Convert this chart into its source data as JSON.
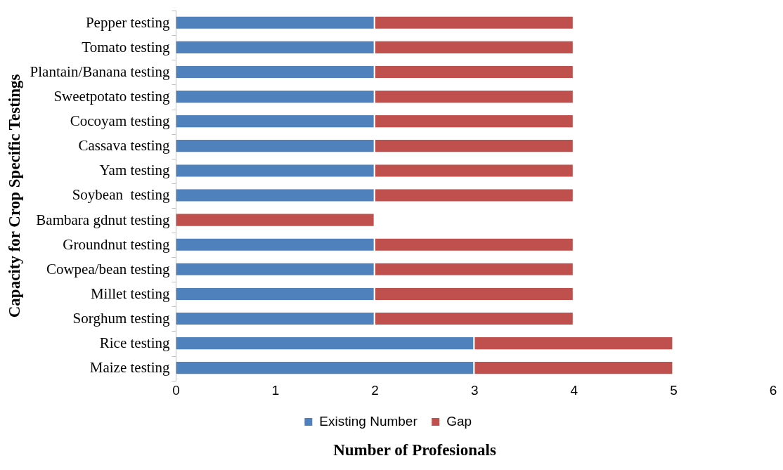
{
  "chart_data": {
    "type": "bar",
    "orientation": "horizontal",
    "stacked": true,
    "xlabel": "Number of Profesionals",
    "ylabel": "Capacity for Crop Specific Testings",
    "categories": [
      "Pepper testing",
      "Tomato testing",
      "Plantain/Banana testing",
      "Sweetpotato testing",
      "Cocoyam testing",
      "Cassava testing",
      "Yam testing",
      "Soybean  testing",
      "Bambara gdnut testing",
      "Groundnut testing",
      "Cowpea/bean testing",
      "Millet testing",
      "Sorghum testing",
      "Rice testing",
      "Maize testing"
    ],
    "series": [
      {
        "name": "Existing Number",
        "color": "#4f81bd",
        "values": [
          2,
          2,
          2,
          2,
          2,
          2,
          2,
          2,
          0,
          2,
          2,
          2,
          2,
          3,
          3
        ]
      },
      {
        "name": "Gap",
        "color": "#c0504d",
        "values": [
          2,
          2,
          2,
          2,
          2,
          2,
          2,
          2,
          2,
          2,
          2,
          2,
          2,
          2,
          2
        ]
      }
    ],
    "xlim": [
      0,
      6
    ],
    "xticks": [
      0,
      1,
      2,
      3,
      4,
      5,
      6
    ],
    "grid": false,
    "legend": "bottom"
  }
}
